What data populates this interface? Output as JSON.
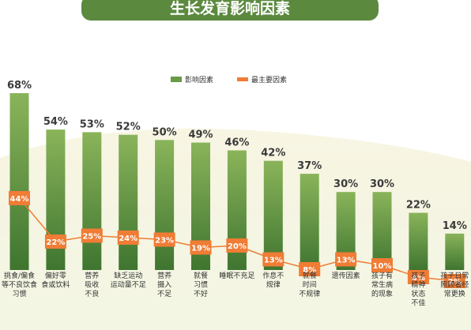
{
  "chart_data": {
    "type": "bar",
    "title": "生长发育影响因素",
    "categories": [
      "挑食/偏食等不良饮食习惯",
      "偏好零食或饮料",
      "营养吸收不良",
      "缺乏运动运动量不足",
      "营养摄入不足",
      "就餐习惯不好",
      "睡眠不充足",
      "作息不规律",
      "就餐时间不规律",
      "遗传因素",
      "孩子有常生病的现象",
      "孩子精神状态不佳",
      "孩子日常照顾者经常更换"
    ],
    "category_lines": [
      [
        "挑食/偏食",
        "等不良饮食",
        "习惯"
      ],
      [
        "偏好零",
        "食或饮料"
      ],
      [
        "营养",
        "吸收",
        "不良"
      ],
      [
        "缺乏运动",
        "运动量不足"
      ],
      [
        "营养",
        "摄入",
        "不足"
      ],
      [
        "就餐",
        "习惯",
        "不好"
      ],
      [
        "睡眠不充足"
      ],
      [
        "作息不",
        "规律"
      ],
      [
        "就餐",
        "时间",
        "不规律"
      ],
      [
        "遗传因素"
      ],
      [
        "孩子有",
        "常生病",
        "的现象"
      ],
      [
        "孩子",
        "精神",
        "状态",
        "不佳"
      ],
      [
        "孩子日常",
        "照顾者经",
        "常更换"
      ]
    ],
    "series": [
      {
        "name": "影响因素",
        "type": "bar",
        "values": [
          68,
          54,
          53,
          52,
          50,
          49,
          46,
          42,
          37,
          30,
          30,
          22,
          14
        ],
        "labels": [
          "68%",
          "54%",
          "53%",
          "52%",
          "50%",
          "49%",
          "46%",
          "42%",
          "37%",
          "30%",
          "30%",
          "22%",
          "14%"
        ]
      },
      {
        "name": "最主要因素",
        "type": "line",
        "values": [
          44,
          22,
          25,
          24,
          23,
          19,
          20,
          13,
          8,
          13,
          10,
          4,
          2
        ],
        "labels": [
          "44%",
          "22%",
          "25%",
          "24%",
          "23%",
          "19%",
          "20%",
          "13%",
          "8%",
          "13%",
          "10%",
          "4%",
          "2%"
        ]
      }
    ],
    "ylim": [
      0,
      70
    ],
    "grid": false,
    "legend_position": "top-right",
    "colors": {
      "bar_top": "#8ab45a",
      "bar_bottom": "#3f7530",
      "line": "#f07c35",
      "title_bg": "#5b8a3f",
      "label_text": "#3a3a3a"
    }
  }
}
